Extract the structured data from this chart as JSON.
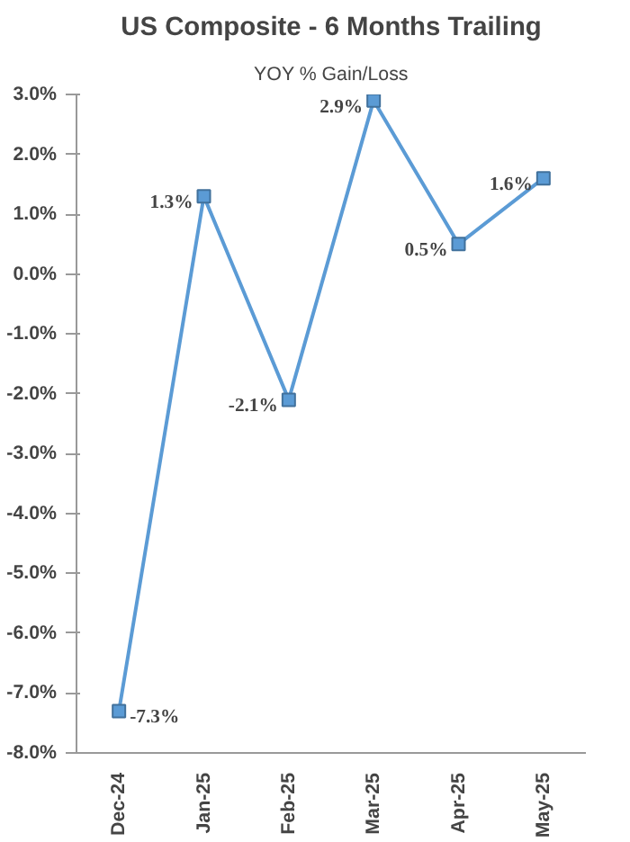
{
  "chart_data": {
    "type": "line",
    "title": "US Composite - 6 Months Trailing",
    "subtitle": "YOY % Gain/Loss",
    "categories": [
      "Dec-24",
      "Jan-25",
      "Feb-25",
      "Mar-25",
      "Apr-25",
      "May-25"
    ],
    "values": [
      -7.3,
      1.3,
      -2.1,
      2.9,
      0.5,
      1.6
    ],
    "value_labels": [
      "-7.3%",
      "1.3%",
      "-2.1%",
      "2.9%",
      "0.5%",
      "1.6%"
    ],
    "color": "#5b9bd5",
    "marker": "square",
    "grid": false,
    "ylim": [
      -8,
      3
    ],
    "yticks": [
      {
        "value": 3,
        "label": "3.0%"
      },
      {
        "value": 2,
        "label": "2.0%"
      },
      {
        "value": 1,
        "label": "1.0%"
      },
      {
        "value": 0,
        "label": "0.0%"
      },
      {
        "value": -1,
        "label": "-1.0%"
      },
      {
        "value": -2,
        "label": "-2.0%"
      },
      {
        "value": -3,
        "label": "-3.0%"
      },
      {
        "value": -4,
        "label": "-4.0%"
      },
      {
        "value": -5,
        "label": "-5.0%"
      },
      {
        "value": -6,
        "label": "-6.0%"
      },
      {
        "value": -7,
        "label": "-7.0%"
      },
      {
        "value": -8,
        "label": "-8.0%"
      }
    ]
  }
}
